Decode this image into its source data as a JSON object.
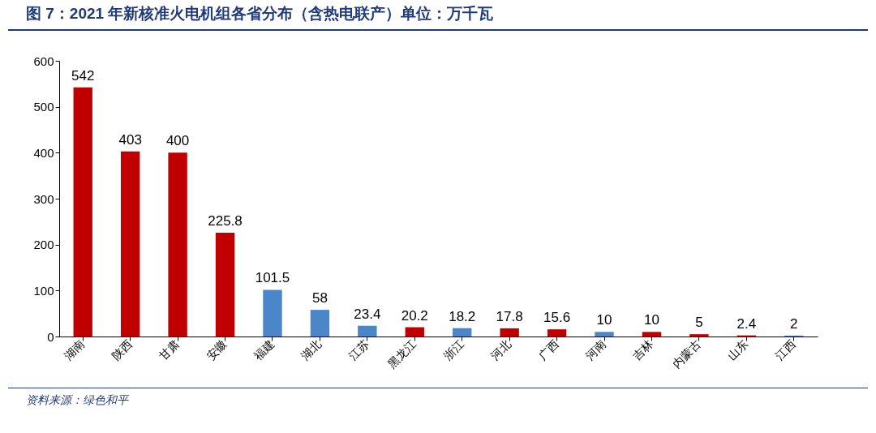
{
  "chart_data": {
    "type": "bar",
    "title": "图 7：2021 年新核准火电机组各省分布（含热电联产）单位：万千瓦",
    "categories": [
      "湖南",
      "陕西",
      "甘肃",
      "安徽",
      "福建",
      "湖北",
      "江苏",
      "黑龙江",
      "浙江",
      "河北",
      "广西",
      "河南",
      "吉林",
      "内蒙古",
      "山东",
      "江西"
    ],
    "values": [
      542,
      403,
      400,
      225.8,
      101.5,
      58,
      23.4,
      20.2,
      18.2,
      17.8,
      15.6,
      10,
      10,
      5,
      2.4,
      2
    ],
    "colors": [
      "#c00000",
      "#c00000",
      "#c00000",
      "#c00000",
      "#4a86c8",
      "#4a86c8",
      "#4a86c8",
      "#c00000",
      "#4a86c8",
      "#c00000",
      "#c00000",
      "#4a86c8",
      "#c00000",
      "#c00000",
      "#c00000",
      "#4a86c8"
    ],
    "ylim": [
      0,
      600
    ],
    "yticks": [
      0,
      100,
      200,
      300,
      400,
      500,
      600
    ],
    "grid": false,
    "data_labels": true,
    "annotations": [
      "资料来源：绿色和平"
    ]
  }
}
